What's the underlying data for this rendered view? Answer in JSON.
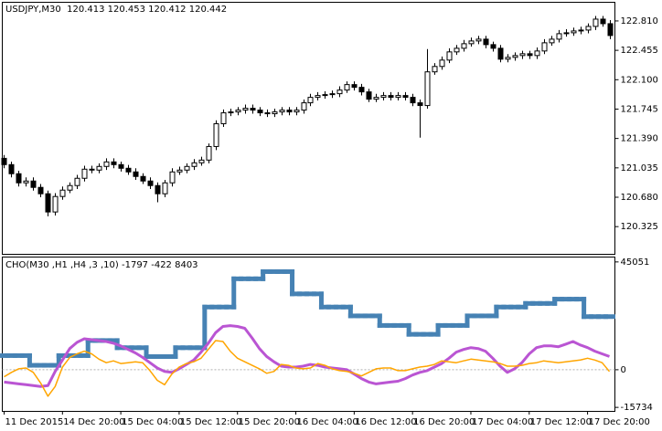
{
  "chart_data": [
    {
      "type": "candlestick",
      "title": "USDJPY,M30  120.413 120.453 120.412 120.442",
      "open": [
        121.15,
        121.074,
        120.964,
        120.854,
        120.876,
        120.799,
        120.722,
        120.502,
        120.689,
        120.766,
        120.821,
        120.909,
        121.019,
        121.008,
        121.052,
        121.107,
        121.074,
        121.03,
        120.986,
        120.931,
        120.876,
        120.821,
        120.722,
        120.854,
        120.986,
        121.008,
        121.052,
        121.096,
        121.129,
        121.293,
        121.568,
        121.7,
        121.711,
        121.733,
        121.755,
        121.733,
        121.7,
        121.689,
        121.711,
        121.733,
        121.711,
        121.733,
        121.821,
        121.887,
        121.909,
        121.92,
        121.931,
        121.975,
        122.041,
        122.008,
        121.953,
        121.865,
        121.887,
        121.909,
        121.887,
        121.909,
        121.887,
        121.821,
        121.788,
        122.195,
        122.26,
        122.337,
        122.436,
        122.48,
        122.535,
        122.568,
        122.59,
        122.524,
        122.48,
        122.348,
        122.37,
        122.392,
        122.414,
        122.392,
        122.447,
        122.546,
        122.59,
        122.656,
        122.667,
        122.689,
        122.7,
        122.744,
        122.832,
        122.777
      ],
      "high": [
        121.19,
        121.11,
        121.0,
        120.92,
        120.92,
        120.84,
        120.76,
        120.73,
        120.81,
        120.86,
        120.95,
        121.06,
        121.06,
        121.09,
        121.15,
        121.15,
        121.11,
        121.07,
        121.03,
        120.97,
        120.92,
        120.86,
        120.89,
        121.03,
        121.05,
        121.09,
        121.14,
        121.17,
        121.33,
        121.61,
        121.74,
        121.75,
        121.77,
        121.8,
        121.8,
        121.77,
        121.74,
        121.75,
        121.77,
        121.77,
        121.77,
        121.86,
        121.93,
        121.95,
        121.96,
        121.97,
        122.02,
        122.08,
        122.08,
        122.05,
        121.99,
        121.93,
        121.95,
        121.95,
        121.95,
        121.95,
        121.93,
        121.86,
        122.47,
        122.3,
        122.38,
        122.48,
        122.52,
        122.58,
        122.61,
        122.63,
        122.63,
        122.56,
        122.52,
        122.41,
        122.43,
        122.45,
        122.45,
        122.49,
        122.59,
        122.63,
        122.7,
        122.71,
        122.73,
        122.74,
        122.78,
        122.87,
        122.87,
        122.82
      ],
      "low": [
        121.03,
        120.92,
        120.81,
        120.81,
        120.76,
        120.68,
        120.45,
        120.46,
        120.65,
        120.73,
        120.78,
        120.87,
        120.97,
        120.97,
        121.01,
        121.03,
        120.99,
        120.95,
        120.89,
        120.84,
        120.78,
        120.62,
        120.68,
        120.81,
        120.95,
        120.97,
        121.01,
        121.06,
        121.09,
        121.25,
        121.53,
        121.66,
        121.67,
        121.69,
        121.69,
        121.66,
        121.65,
        121.65,
        121.67,
        121.67,
        121.67,
        121.69,
        121.78,
        121.85,
        121.87,
        121.88,
        121.89,
        121.94,
        121.97,
        121.91,
        121.83,
        121.83,
        121.85,
        121.85,
        121.85,
        121.85,
        121.78,
        121.4,
        121.75,
        122.16,
        122.22,
        122.3,
        122.4,
        122.44,
        122.5,
        122.53,
        122.48,
        122.44,
        122.31,
        122.31,
        122.33,
        122.35,
        122.35,
        122.35,
        122.41,
        122.51,
        122.55,
        122.62,
        122.63,
        122.65,
        122.66,
        122.7,
        122.74,
        122.59
      ],
      "close": [
        121.074,
        120.964,
        120.854,
        120.876,
        120.799,
        120.722,
        120.502,
        120.689,
        120.766,
        120.821,
        120.909,
        121.019,
        121.008,
        121.052,
        121.107,
        121.074,
        121.03,
        120.986,
        120.931,
        120.876,
        120.821,
        120.722,
        120.854,
        120.986,
        121.008,
        121.052,
        121.096,
        121.129,
        121.293,
        121.568,
        121.7,
        121.711,
        121.733,
        121.755,
        121.733,
        121.7,
        121.689,
        121.711,
        121.733,
        121.711,
        121.733,
        121.821,
        121.887,
        121.909,
        121.92,
        121.931,
        121.975,
        122.041,
        122.008,
        121.953,
        121.865,
        121.887,
        121.909,
        121.887,
        121.909,
        121.887,
        121.821,
        121.788,
        122.195,
        122.26,
        122.337,
        122.436,
        122.48,
        122.535,
        122.568,
        122.59,
        122.524,
        122.48,
        122.348,
        122.37,
        122.392,
        122.414,
        122.392,
        122.447,
        122.546,
        122.59,
        122.656,
        122.667,
        122.689,
        122.7,
        122.744,
        122.832,
        122.777,
        122.634
      ],
      "up_color": "#ffffff",
      "down_color": "#000000",
      "ylim": [
        119.996,
        123.03
      ],
      "yticks": [
        {
          "value": 122.81,
          "label": "122.810"
        },
        {
          "value": 122.455,
          "label": "122.455"
        },
        {
          "value": 122.1,
          "label": "122.100"
        },
        {
          "value": 121.745,
          "label": "121.745"
        },
        {
          "value": 121.39,
          "label": "121.390"
        },
        {
          "value": 121.035,
          "label": "121.035"
        },
        {
          "value": 120.68,
          "label": "120.680"
        },
        {
          "value": 120.325,
          "label": "120.325"
        }
      ]
    },
    {
      "type": "line",
      "title": "CHO(M30 ,H1 ,H4 ,3 ,10) -1797 -422 8403",
      "categories": [
        "11 Dec 2015",
        null,
        null,
        null,
        null,
        null,
        null,
        null,
        "14 Dec 20:00",
        null,
        null,
        null,
        null,
        null,
        null,
        null,
        "15 Dec 04:00",
        null,
        null,
        null,
        null,
        null,
        null,
        null,
        "15 Dec 12:00",
        null,
        null,
        null,
        null,
        null,
        null,
        null,
        "15 Dec 20:00",
        null,
        null,
        null,
        null,
        null,
        null,
        null,
        "16 Dec 04:00",
        null,
        null,
        null,
        null,
        null,
        null,
        null,
        "16 Dec 12:00",
        null,
        null,
        null,
        null,
        null,
        null,
        null,
        "16 Dec 20:00",
        null,
        null,
        null,
        null,
        null,
        null,
        null,
        "17 Dec 04:00",
        null,
        null,
        null,
        null,
        null,
        null,
        null,
        "17 Dec 12:00",
        null,
        null,
        null,
        null,
        null,
        null,
        null,
        "17 Dec 20:00",
        null,
        null,
        null
      ],
      "series": [
        {
          "color": "#4682b4",
          "step": true,
          "values": [
            5900,
            5900,
            5900,
            5900,
            1850,
            1850,
            1850,
            1850,
            5900,
            5900,
            5900,
            5900,
            12200,
            12200,
            12200,
            12200,
            9200,
            9200,
            9200,
            9200,
            5500,
            5500,
            5500,
            5500,
            9200,
            9200,
            9200,
            9200,
            26200,
            26200,
            26200,
            26200,
            38000,
            38000,
            38000,
            38000,
            41000,
            41000,
            41000,
            41000,
            31700,
            31700,
            31700,
            31700,
            26200,
            26200,
            26200,
            26200,
            22500,
            22500,
            22500,
            22500,
            18500,
            18500,
            18500,
            18500,
            14800,
            14800,
            14800,
            14800,
            18500,
            18500,
            18500,
            18500,
            22500,
            22500,
            22500,
            22500,
            26200,
            26200,
            26200,
            26200,
            27700,
            27700,
            27700,
            27700,
            29500,
            29500,
            29500,
            29500,
            22200,
            22200,
            22200,
            22200
          ]
        },
        {
          "color": "#ba55d3",
          "step": false,
          "values": [
            -5170,
            -5540,
            -5900,
            -6270,
            -6640,
            -7010,
            -6640,
            -740,
            4060,
            8860,
            11440,
            12920,
            12550,
            12180,
            11810,
            11070,
            9960,
            8490,
            7010,
            5170,
            2950,
            740,
            -740,
            -1110,
            370,
            2210,
            4060,
            7380,
            11070,
            15500,
            18080,
            18450,
            18080,
            17340,
            13280,
            8860,
            5540,
            3320,
            1480,
            1110,
            1110,
            1480,
            2210,
            1850,
            1110,
            740,
            370,
            0,
            -1850,
            -3690,
            -5170,
            -5900,
            -5540,
            -5170,
            -4800,
            -3690,
            -2210,
            -1110,
            -370,
            1110,
            2580,
            4800,
            7380,
            8490,
            9230,
            8860,
            7750,
            4800,
            1480,
            -1110,
            370,
            2950,
            6640,
            9230,
            9960,
            9960,
            9600,
            10700,
            11810,
            10330,
            9230,
            7750,
            6640,
            5540
          ]
        },
        {
          "color": "#ffa500",
          "step": false,
          "values": [
            -2950,
            -1110,
            370,
            740,
            -1110,
            -5540,
            -11070,
            -7010,
            1110,
            5170,
            6640,
            7750,
            6640,
            4430,
            2950,
            3690,
            2580,
            2950,
            3320,
            2950,
            -370,
            -4430,
            -6270,
            -1850,
            1110,
            2580,
            3320,
            4800,
            8490,
            12180,
            11810,
            7750,
            4800,
            3320,
            1850,
            370,
            -1480,
            -740,
            2210,
            1850,
            740,
            370,
            740,
            2580,
            1850,
            370,
            -370,
            -740,
            -1480,
            -2580,
            -1110,
            370,
            740,
            740,
            -370,
            -370,
            370,
            1110,
            1480,
            2210,
            3690,
            3320,
            2950,
            3690,
            4430,
            4060,
            3690,
            3320,
            2580,
            1480,
            1480,
            1850,
            2580,
            2950,
            3690,
            3320,
            2950,
            3320,
            3690,
            4060,
            4800,
            4060,
            2950,
            -740
          ]
        }
      ],
      "ylim": [
        -17210,
        46900
      ],
      "yticks": [
        45051,
        0,
        -15734
      ],
      "zero_line": true
    }
  ]
}
